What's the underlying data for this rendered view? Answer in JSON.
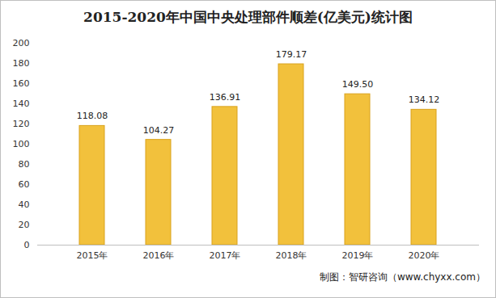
{
  "chart_data": {
    "type": "bar",
    "title": "2015-2020年中国中央处理部件顺差(亿美元)统计图",
    "categories": [
      "2015年",
      "2016年",
      "2017年",
      "2018年",
      "2019年",
      "2020年"
    ],
    "values": [
      118.08,
      104.27,
      136.91,
      179.17,
      149.5,
      134.12
    ],
    "value_labels": [
      "118.08",
      "104.27",
      "136.91",
      "179.17",
      "149.50",
      "134.12"
    ],
    "color": "#f2c13c",
    "ylim": [
      0,
      200
    ],
    "yticks": [
      0,
      20,
      40,
      60,
      80,
      100,
      120,
      140,
      160,
      180,
      200
    ],
    "grid": false,
    "data_labels": true,
    "caption": "制图：智研咨询（www.chyxx.com）"
  }
}
